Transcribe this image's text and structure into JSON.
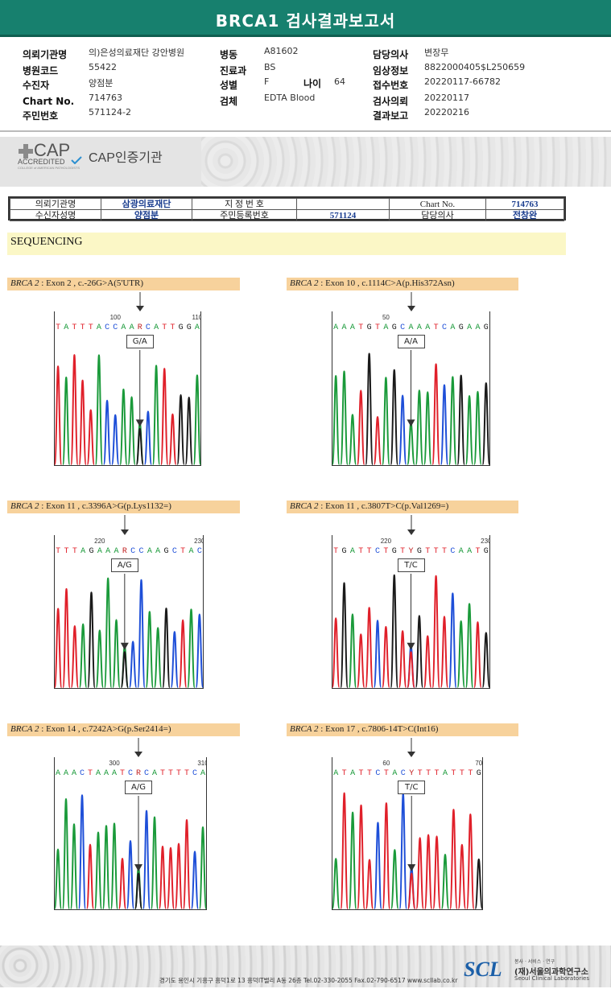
{
  "title": "BRCA1 검사결과보고서",
  "header": {
    "col1": [
      {
        "label": "의뢰기관명",
        "value": "의)은성의료재단 강안병원"
      },
      {
        "label": "병원코드",
        "value": "55422"
      },
      {
        "label": "수진자",
        "value": "양점분"
      },
      {
        "label": "Chart No.",
        "value": "714763"
      },
      {
        "label": "주민번호",
        "value": "571124-2"
      }
    ],
    "col2": [
      {
        "label": "병동",
        "value": "A81602"
      },
      {
        "label": "진료과",
        "value": "BS"
      },
      {
        "label": "성별",
        "value": "F"
      },
      {
        "label": "검체",
        "value": "EDTA Blood"
      }
    ],
    "age": {
      "label": "나이",
      "value": "64"
    },
    "col3": [
      {
        "label": "담당의사",
        "value": "변장무"
      },
      {
        "label": "임상정보",
        "value": "8822000405$L250659"
      },
      {
        "label": "접수번호",
        "value": "20220117-66782"
      },
      {
        "label": "검사의뢰",
        "value": "20220117"
      },
      {
        "label": "결과보고",
        "value": "20220216"
      }
    ]
  },
  "cap": {
    "logo_text": "CAP",
    "accredited": "ACCREDITED",
    "small": "COLLEGE of AMERICAN PATHOLOGISTS",
    "label": "CAP인증기관"
  },
  "patient_table": {
    "r1": {
      "l1": "의뢰기관명",
      "v1": "삼광의료재단",
      "l2": "지 정 번 호",
      "v2": "",
      "l3": "Chart No.",
      "v3": "714763"
    },
    "r2": {
      "l1": "수신자성명",
      "v1": "양점분",
      "l2": "주민등록번호",
      "v2": "571124",
      "l3": "담당의사",
      "v3": "전창완"
    }
  },
  "section": "SEQUENCING",
  "colors": {
    "A": "#1a9a3a",
    "C": "#1e4fd8",
    "G": "#1a1a1a",
    "T": "#e0202a",
    "teal": "#17806e",
    "label_bg": "#f7d29c"
  },
  "variants": [
    {
      "gene": "BRCA 2",
      "rest": " : Exon 2 , c.-26G>A(5'UTR)",
      "seq": "TATTTACCAARCATTGGA",
      "pos1": "100",
      "pos2": "110",
      "genotype": "G/A"
    },
    {
      "gene": "BRCA 2",
      "rest": " : Exon 10 , c.1114C>A(p.His372Asn)",
      "seq": "AAATGTAGCAAATCAGAAG",
      "pos1": "50",
      "pos2": "",
      "genotype": "A/A"
    },
    {
      "gene": "BRCA 2",
      "rest": " : Exon 11 , c.3396A>G(p.Lys1132=)",
      "seq": "TTTAGAAARCCAAGCTAC",
      "pos1": "220",
      "pos2": "230",
      "genotype": "A/G"
    },
    {
      "gene": "BRCA 2",
      "rest": " : Exon 11 , c.3807T>C(p.Val1269=)",
      "seq": "TGATTCTGTYGTTTCAATG",
      "pos1": "220",
      "pos2": "230",
      "genotype": "T/C"
    },
    {
      "gene": "BRCA 2",
      "rest": " : Exon 14 , c.7242A>G(p.Ser2414=)",
      "seq": "AAACTAAATCRCATTTTCA",
      "pos1": "300",
      "pos2": "310",
      "genotype": "A/G"
    },
    {
      "gene": "BRCA 2",
      "rest": " : Exon 17 , c.7806-14T>C(Int16)",
      "seq": "ATATTCTACYTTTATTTG",
      "pos1": "60",
      "pos2": "70",
      "genotype": "T/C"
    }
  ],
  "footer": {
    "address": "경기도 용인시 기흥구 흥덕1로 13 흥덕IT밸리 A동 26층  Tel.02-330-2055  Fax.02-790-6517  www.scllab.co.kr",
    "logo": "SCL",
    "tagline": "봉사 · 서비스 · 연구",
    "org_kr": "(재)서울의과학연구소",
    "org_en": "Seoul Clinical Laboratories"
  }
}
